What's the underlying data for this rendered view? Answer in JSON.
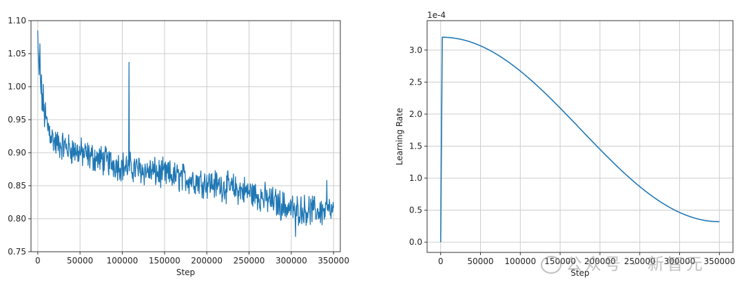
{
  "chart_data": [
    {
      "type": "line",
      "title": "",
      "xlabel": "Step",
      "ylabel": "",
      "xlim": [
        -8000,
        358000
      ],
      "ylim": [
        0.75,
        1.1
      ],
      "xticks": [
        0,
        50000,
        100000,
        150000,
        200000,
        250000,
        300000,
        350000
      ],
      "yticks": [
        0.75,
        0.8,
        0.85,
        0.9,
        0.95,
        1.0,
        1.05,
        1.1
      ],
      "ytick_labels": [
        "0.75",
        "0.80",
        "0.85",
        "0.90",
        "0.95",
        "1.00",
        "1.05",
        "1.10"
      ],
      "grid": true,
      "series": [
        {
          "color": "#1f77b4",
          "trend": {
            "x": [
              0,
              2000,
              5000,
              10000,
              20000,
              40000,
              60000,
              100000,
              150000,
              200000,
              250000,
              300000,
              350000
            ],
            "y": [
              1.04,
              1.02,
              0.985,
              0.945,
              0.915,
              0.905,
              0.895,
              0.88,
              0.867,
              0.855,
              0.84,
              0.815,
              0.81
            ]
          },
          "noise_amplitude": 0.018,
          "spikes": [
            {
              "x": 0,
              "y": 1.085
            },
            {
              "x": 2500,
              "y": 1.065
            },
            {
              "x": 108000,
              "y": 1.037
            },
            {
              "x": 305000,
              "y": 0.773
            },
            {
              "x": 342000,
              "y": 0.858
            }
          ]
        }
      ]
    },
    {
      "type": "line",
      "title": "",
      "xlabel": "Step",
      "ylabel": "Learning Rate",
      "offset_label": "1e-4",
      "xlim": [
        -17000,
        367000
      ],
      "ylim": [
        -0.16,
        3.46
      ],
      "xticks": [
        0,
        50000,
        100000,
        150000,
        200000,
        250000,
        300000,
        350000
      ],
      "yticks": [
        0.0,
        0.5,
        1.0,
        1.5,
        2.0,
        2.5,
        3.0
      ],
      "ytick_labels": [
        "0.0",
        "0.5",
        "1.0",
        "1.5",
        "2.0",
        "2.5",
        "3.0"
      ],
      "grid": true,
      "series": [
        {
          "color": "#1f77b4",
          "warmup_steps": 2000,
          "peak_lr": 3.2,
          "final_lr": 0.32,
          "total_steps": 350000,
          "schedule": "cosine"
        }
      ]
    }
  ],
  "watermark": {
    "text": "公众号 · 新智元"
  }
}
